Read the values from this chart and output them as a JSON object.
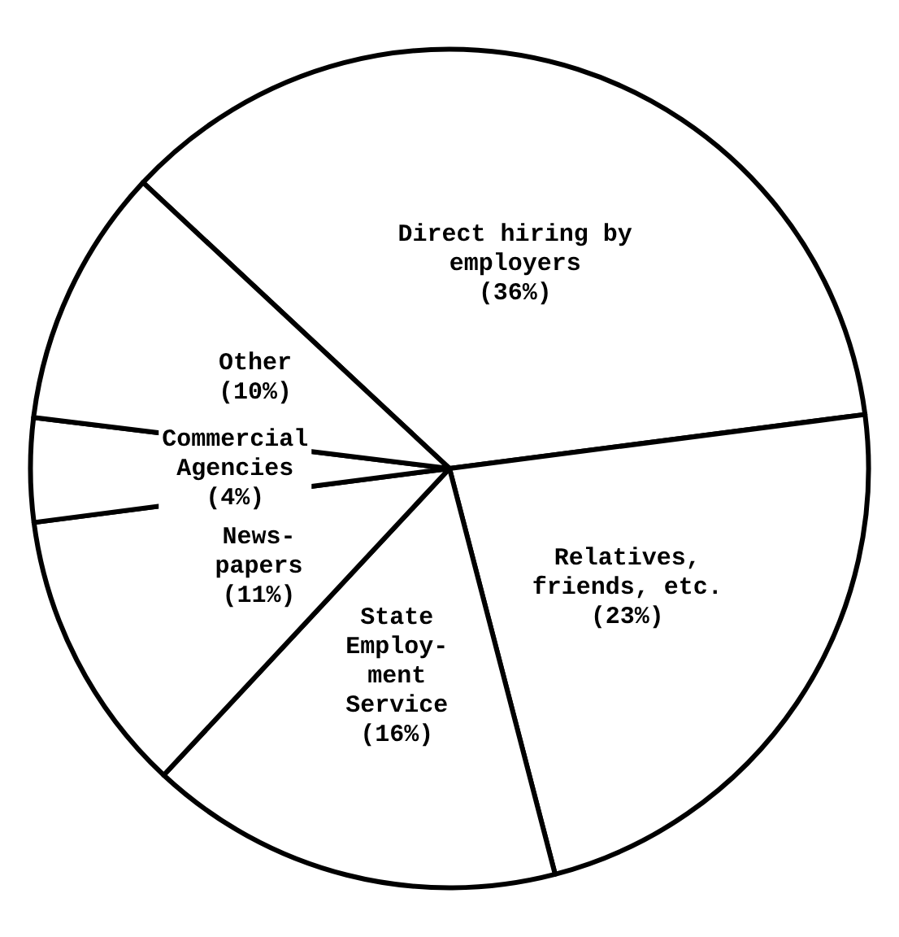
{
  "chart_data": {
    "type": "pie",
    "categories": [
      "Direct hiring by\nemployers",
      "Relatives,\nfriends, etc.",
      "State\nEmploy-\nment\nService",
      "News-\npapers",
      "Commercial\nAgencies",
      "Other"
    ],
    "values": [
      36,
      23,
      16,
      11,
      4,
      10
    ],
    "value_labels": [
      "(36%)",
      "(23%)",
      "(16%)",
      "(11%)",
      "(4%)",
      "(10%)"
    ],
    "colors": [
      "#ffffff",
      "#ffffff",
      "#ffffff",
      "#ffffff",
      "#ffffff",
      "#ffffff"
    ],
    "legend": false
  }
}
